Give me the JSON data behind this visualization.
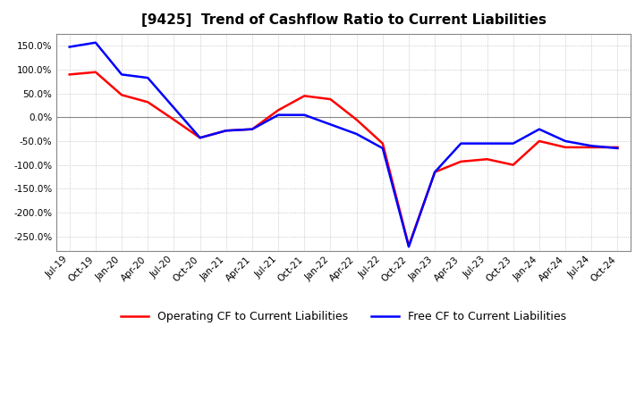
{
  "title": "[9425]  Trend of Cashflow Ratio to Current Liabilities",
  "legend_labels": [
    "Operating CF to Current Liabilities",
    "Free CF to Current Liabilities"
  ],
  "line_colors": [
    "#ff0000",
    "#0000ff"
  ],
  "ylim": [
    -280,
    175
  ],
  "yticks": [
    150,
    100,
    50,
    0,
    -50,
    -100,
    -150,
    -200,
    -250
  ],
  "background_color": "#ffffff",
  "grid_color": "#aaaaaa",
  "x_labels": [
    "Jul-19",
    "Oct-19",
    "Jan-20",
    "Apr-20",
    "Jul-20",
    "Oct-20",
    "Jan-21",
    "Apr-21",
    "Jul-21",
    "Oct-21",
    "Jan-22",
    "Apr-22",
    "Jul-22",
    "Oct-22",
    "Jan-23",
    "Apr-23",
    "Jul-23",
    "Oct-23",
    "Jan-24",
    "Apr-24",
    "Jul-24",
    "Oct-24"
  ],
  "operating_cf": [
    90,
    95,
    47,
    32,
    -5,
    -43,
    -28,
    -25,
    15,
    45,
    38,
    -5,
    -55,
    -270,
    -115,
    -93,
    -88,
    -100,
    -50,
    -63,
    -63,
    -63
  ],
  "free_cf": [
    148,
    157,
    90,
    83,
    20,
    -43,
    -28,
    -25,
    5,
    5,
    -15,
    -35,
    -65,
    -272,
    -115,
    -55,
    -55,
    -55,
    -25,
    -50,
    -60,
    -65
  ]
}
